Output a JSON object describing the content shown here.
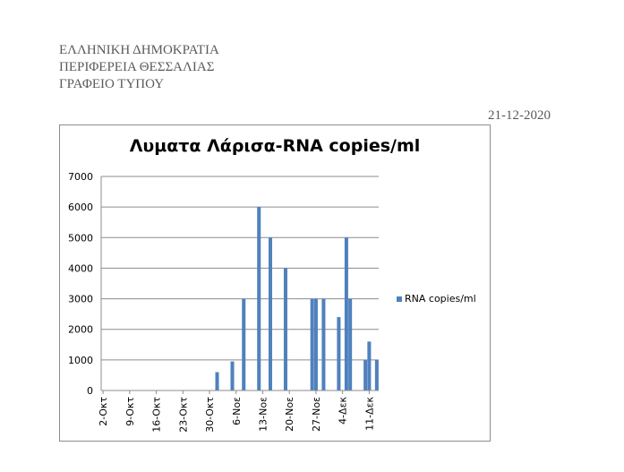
{
  "header": {
    "line1": "ΕΛΛΗΝΙΚΗ ΔΗΜΟΚΡΑΤΙΑ",
    "line2": "ΠΕΡΙΦΕΡΕΙΑ ΘΕΣΣΑΛΙΑΣ",
    "line3": "ΓΡΑΦΕΙΟ ΤΥΠΟΥ"
  },
  "date": "21-12-2020",
  "colors": {
    "bar": "#4f81bd",
    "grid": "#8c8c8c"
  },
  "chart_data": {
    "type": "bar",
    "title": "Λυματα Λάρισα-RNA copies/ml",
    "xlabel": "",
    "ylabel": "",
    "ylim": [
      0,
      7000
    ],
    "yticks": [
      0,
      1000,
      2000,
      3000,
      4000,
      5000,
      6000,
      7000
    ],
    "grid": true,
    "legend_position": "right",
    "xticks": [
      "2-Οκτ",
      "9-Οκτ",
      "16-Οκτ",
      "23-Οκτ",
      "30-Οκτ",
      "6-Νοε",
      "13-Νοε",
      "20-Νοε",
      "27-Νοε",
      "4-Δεκ",
      "11-Δεκ"
    ],
    "x_range": [
      "2020-10-02",
      "2020-12-13"
    ],
    "series": [
      {
        "name": "RNA copies/ml",
        "points": [
          {
            "x": "2020-11-01",
            "y": 600
          },
          {
            "x": "2020-11-05",
            "y": 950
          },
          {
            "x": "2020-11-08",
            "y": 3000
          },
          {
            "x": "2020-11-12",
            "y": 6000
          },
          {
            "x": "2020-11-15",
            "y": 5000
          },
          {
            "x": "2020-11-19",
            "y": 4000
          },
          {
            "x": "2020-11-26",
            "y": 3000
          },
          {
            "x": "2020-11-27",
            "y": 3000
          },
          {
            "x": "2020-11-29",
            "y": 3000
          },
          {
            "x": "2020-12-03",
            "y": 2400
          },
          {
            "x": "2020-12-05",
            "y": 5000
          },
          {
            "x": "2020-12-06",
            "y": 3000
          },
          {
            "x": "2020-12-10",
            "y": 1000
          },
          {
            "x": "2020-12-11",
            "y": 1600
          },
          {
            "x": "2020-12-13",
            "y": 1000
          }
        ]
      }
    ]
  }
}
